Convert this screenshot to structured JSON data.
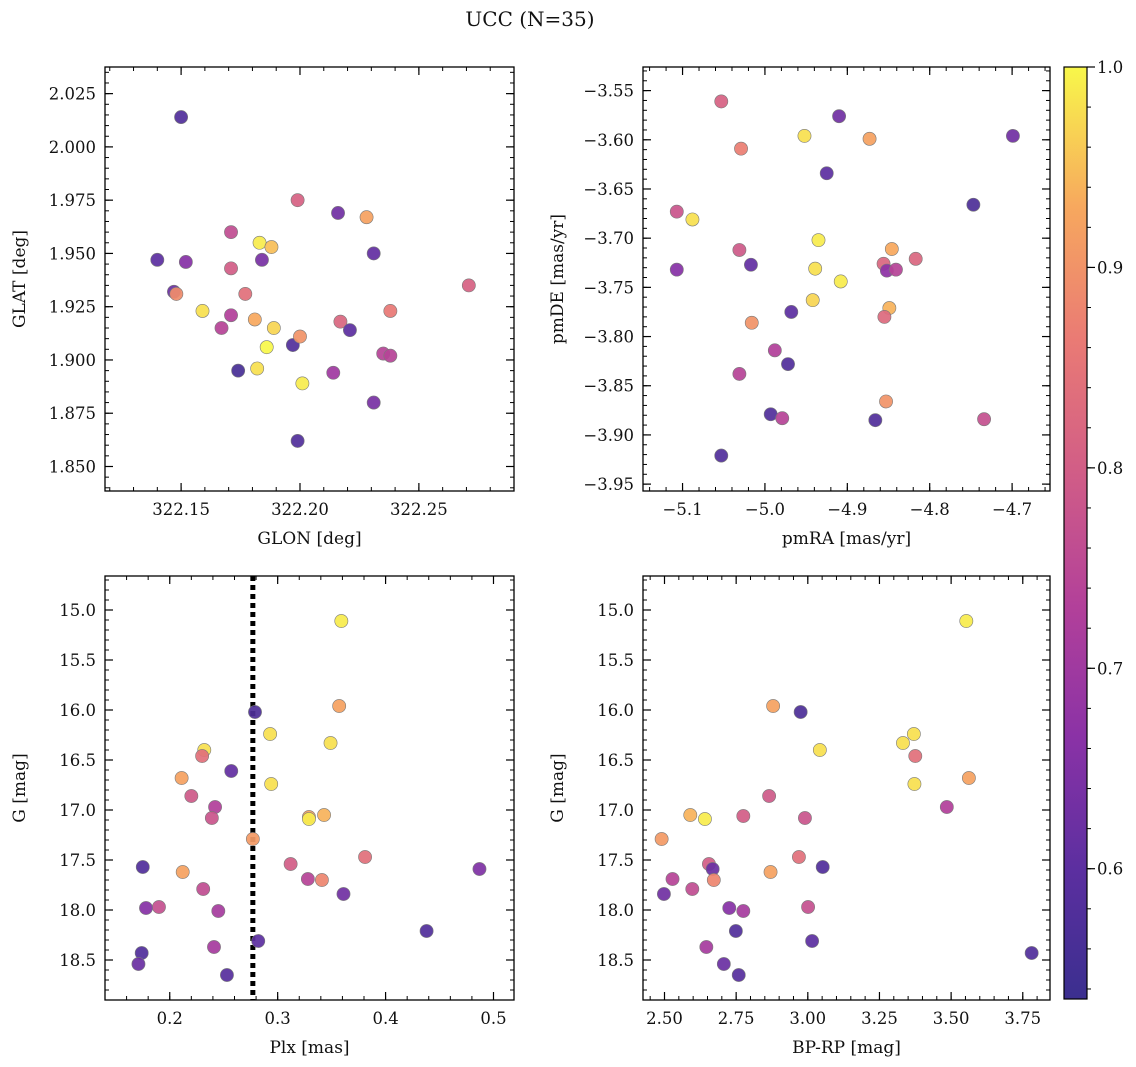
{
  "figure": {
    "title": "UCC (N=35)"
  },
  "colorbar": {
    "min": 0.535,
    "max": 1.0,
    "ticks": [
      0.6,
      0.7,
      0.8,
      0.9,
      1.0
    ],
    "tick_labels": [
      "0.6",
      "0.7",
      "0.8",
      "0.9",
      "1.0"
    ],
    "colormap": "plasma"
  },
  "chart_data": [
    {
      "id": "p1",
      "type": "scatter",
      "xlabel": "GLON [deg]",
      "ylabel": "GLAT [deg]",
      "xlim": [
        322.118,
        322.29
      ],
      "ylim": [
        1.8385,
        2.0375
      ],
      "xticks": [
        322.15,
        322.2,
        322.25
      ],
      "xtick_labels": [
        "322.15",
        "322.20",
        "322.25"
      ],
      "yticks": [
        1.85,
        1.875,
        1.9,
        1.925,
        1.95,
        1.975,
        2.0,
        2.025
      ],
      "ytick_labels": [
        "1.850",
        "1.875",
        "1.900",
        "1.925",
        "1.950",
        "1.975",
        "2.000",
        "2.025"
      ],
      "x_minor_step": 0.01,
      "y_minor_step": 0.005,
      "points": [
        {
          "x": 322.15,
          "y": 2.014,
          "c": 0.58
        },
        {
          "x": 322.14,
          "y": 1.947,
          "c": 0.6
        },
        {
          "x": 322.152,
          "y": 1.946,
          "c": 0.66
        },
        {
          "x": 322.147,
          "y": 1.932,
          "c": 0.62
        },
        {
          "x": 322.148,
          "y": 1.931,
          "c": 0.89
        },
        {
          "x": 322.159,
          "y": 1.923,
          "c": 0.98
        },
        {
          "x": 322.167,
          "y": 1.915,
          "c": 0.74
        },
        {
          "x": 322.171,
          "y": 1.96,
          "c": 0.76
        },
        {
          "x": 322.171,
          "y": 1.943,
          "c": 0.8
        },
        {
          "x": 322.171,
          "y": 1.921,
          "c": 0.73
        },
        {
          "x": 322.174,
          "y": 1.895,
          "c": 0.56
        },
        {
          "x": 322.177,
          "y": 1.931,
          "c": 0.84
        },
        {
          "x": 322.181,
          "y": 1.919,
          "c": 0.93
        },
        {
          "x": 322.182,
          "y": 1.896,
          "c": 0.98
        },
        {
          "x": 322.183,
          "y": 1.955,
          "c": 0.99
        },
        {
          "x": 322.184,
          "y": 1.947,
          "c": 0.64
        },
        {
          "x": 322.186,
          "y": 1.906,
          "c": 1.0
        },
        {
          "x": 322.188,
          "y": 1.953,
          "c": 0.95
        },
        {
          "x": 322.189,
          "y": 1.915,
          "c": 0.97
        },
        {
          "x": 322.197,
          "y": 1.907,
          "c": 0.58
        },
        {
          "x": 322.199,
          "y": 1.975,
          "c": 0.81
        },
        {
          "x": 322.199,
          "y": 1.862,
          "c": 0.58
        },
        {
          "x": 322.2,
          "y": 1.911,
          "c": 0.9
        },
        {
          "x": 322.201,
          "y": 1.889,
          "c": 0.99
        },
        {
          "x": 322.214,
          "y": 1.894,
          "c": 0.7
        },
        {
          "x": 322.216,
          "y": 1.969,
          "c": 0.63
        },
        {
          "x": 322.217,
          "y": 1.918,
          "c": 0.82
        },
        {
          "x": 322.221,
          "y": 1.914,
          "c": 0.6
        },
        {
          "x": 322.228,
          "y": 1.967,
          "c": 0.92
        },
        {
          "x": 322.231,
          "y": 1.95,
          "c": 0.61
        },
        {
          "x": 322.231,
          "y": 1.88,
          "c": 0.64
        },
        {
          "x": 322.235,
          "y": 1.903,
          "c": 0.74
        },
        {
          "x": 322.238,
          "y": 1.902,
          "c": 0.74
        },
        {
          "x": 322.238,
          "y": 1.923,
          "c": 0.86
        },
        {
          "x": 322.271,
          "y": 1.935,
          "c": 0.81
        }
      ]
    },
    {
      "id": "p2",
      "type": "scatter",
      "xlabel": "pmRA [mas/yr]",
      "ylabel": "pmDE [mas/yr]",
      "xlim": [
        -5.148,
        -4.654
      ],
      "ylim": [
        -3.957,
        -3.526
      ],
      "xticks": [
        -5.1,
        -5.0,
        -4.9,
        -4.8,
        -4.7
      ],
      "xtick_labels": [
        "−5.1",
        "−5.0",
        "−4.9",
        "−4.8",
        "−4.7"
      ],
      "yticks": [
        -3.95,
        -3.9,
        -3.85,
        -3.8,
        -3.75,
        -3.7,
        -3.65,
        -3.6,
        -3.55
      ],
      "ytick_labels": [
        "−3.95",
        "−3.90",
        "−3.85",
        "−3.80",
        "−3.75",
        "−3.70",
        "−3.65",
        "−3.60",
        "−3.55"
      ],
      "x_minor_step": 0.02,
      "y_minor_step": 0.01,
      "points": [
        {
          "x": -5.053,
          "y": -3.561,
          "c": 0.81
        },
        {
          "x": -5.029,
          "y": -3.609,
          "c": 0.87
        },
        {
          "x": -4.952,
          "y": -3.596,
          "c": 0.98
        },
        {
          "x": -4.91,
          "y": -3.576,
          "c": 0.63
        },
        {
          "x": -4.873,
          "y": -3.599,
          "c": 0.92
        },
        {
          "x": -4.699,
          "y": -3.596,
          "c": 0.63
        },
        {
          "x": -4.925,
          "y": -3.634,
          "c": 0.6
        },
        {
          "x": -4.747,
          "y": -3.666,
          "c": 0.57
        },
        {
          "x": -5.107,
          "y": -3.673,
          "c": 0.78
        },
        {
          "x": -5.088,
          "y": -3.681,
          "c": 0.98
        },
        {
          "x": -5.031,
          "y": -3.712,
          "c": 0.79
        },
        {
          "x": -4.935,
          "y": -3.702,
          "c": 0.99
        },
        {
          "x": -4.846,
          "y": -3.711,
          "c": 0.93
        },
        {
          "x": -5.107,
          "y": -3.732,
          "c": 0.66
        },
        {
          "x": -5.017,
          "y": -3.727,
          "c": 0.61
        },
        {
          "x": -4.939,
          "y": -3.731,
          "c": 0.98
        },
        {
          "x": -4.817,
          "y": -3.721,
          "c": 0.82
        },
        {
          "x": -4.856,
          "y": -3.726,
          "c": 0.82
        },
        {
          "x": -4.852,
          "y": -3.733,
          "c": 0.67
        },
        {
          "x": -4.841,
          "y": -3.732,
          "c": 0.74
        },
        {
          "x": -4.908,
          "y": -3.744,
          "c": 0.99
        },
        {
          "x": -4.942,
          "y": -3.763,
          "c": 0.97
        },
        {
          "x": -4.849,
          "y": -3.771,
          "c": 0.94
        },
        {
          "x": -4.968,
          "y": -3.775,
          "c": 0.6
        },
        {
          "x": -4.855,
          "y": -3.78,
          "c": 0.83
        },
        {
          "x": -5.016,
          "y": -3.786,
          "c": 0.9
        },
        {
          "x": -4.988,
          "y": -3.814,
          "c": 0.73
        },
        {
          "x": -4.972,
          "y": -3.828,
          "c": 0.58
        },
        {
          "x": -5.031,
          "y": -3.838,
          "c": 0.74
        },
        {
          "x": -4.853,
          "y": -3.866,
          "c": 0.9
        },
        {
          "x": -4.993,
          "y": -3.879,
          "c": 0.58
        },
        {
          "x": -4.979,
          "y": -3.883,
          "c": 0.74
        },
        {
          "x": -4.866,
          "y": -3.885,
          "c": 0.58
        },
        {
          "x": -4.734,
          "y": -3.884,
          "c": 0.77
        },
        {
          "x": -5.053,
          "y": -3.921,
          "c": 0.58
        }
      ]
    },
    {
      "id": "p3",
      "type": "scatter",
      "xlabel": "Plx [mas]",
      "ylabel": "G [mag]",
      "xlim": [
        0.14,
        0.519
      ],
      "ylim": [
        18.9,
        14.66
      ],
      "xticks": [
        0.2,
        0.3,
        0.4,
        0.5
      ],
      "xtick_labels": [
        "0.2",
        "0.3",
        "0.4",
        "0.5"
      ],
      "yticks": [
        15.0,
        15.5,
        16.0,
        16.5,
        17.0,
        17.5,
        18.0,
        18.5
      ],
      "ytick_labels": [
        "15.0",
        "15.5",
        "16.0",
        "16.5",
        "17.0",
        "17.5",
        "18.0",
        "18.5"
      ],
      "x_minor_step": 0.02,
      "y_minor_step": 0.1,
      "vline": 0.277,
      "points": [
        {
          "x": 0.359,
          "y": 15.11,
          "c": 0.99
        },
        {
          "x": 0.357,
          "y": 15.96,
          "c": 0.92
        },
        {
          "x": 0.279,
          "y": 16.02,
          "c": 0.57
        },
        {
          "x": 0.293,
          "y": 16.24,
          "c": 0.98
        },
        {
          "x": 0.349,
          "y": 16.33,
          "c": 0.98
        },
        {
          "x": 0.232,
          "y": 16.4,
          "c": 0.98
        },
        {
          "x": 0.23,
          "y": 16.46,
          "c": 0.84
        },
        {
          "x": 0.257,
          "y": 16.61,
          "c": 0.61
        },
        {
          "x": 0.211,
          "y": 16.68,
          "c": 0.92
        },
        {
          "x": 0.294,
          "y": 16.74,
          "c": 0.98
        },
        {
          "x": 0.22,
          "y": 16.86,
          "c": 0.79
        },
        {
          "x": 0.242,
          "y": 16.97,
          "c": 0.73
        },
        {
          "x": 0.343,
          "y": 17.05,
          "c": 0.94
        },
        {
          "x": 0.239,
          "y": 17.08,
          "c": 0.78
        },
        {
          "x": 0.329,
          "y": 17.07,
          "c": 0.92
        },
        {
          "x": 0.329,
          "y": 17.09,
          "c": 0.99
        },
        {
          "x": 0.277,
          "y": 17.29,
          "c": 0.91
        },
        {
          "x": 0.381,
          "y": 17.47,
          "c": 0.84
        },
        {
          "x": 0.312,
          "y": 17.54,
          "c": 0.8
        },
        {
          "x": 0.175,
          "y": 17.57,
          "c": 0.58
        },
        {
          "x": 0.487,
          "y": 17.59,
          "c": 0.65
        },
        {
          "x": 0.212,
          "y": 17.62,
          "c": 0.92
        },
        {
          "x": 0.328,
          "y": 17.69,
          "c": 0.74
        },
        {
          "x": 0.341,
          "y": 17.7,
          "c": 0.88
        },
        {
          "x": 0.231,
          "y": 17.79,
          "c": 0.76
        },
        {
          "x": 0.361,
          "y": 17.84,
          "c": 0.63
        },
        {
          "x": 0.19,
          "y": 17.97,
          "c": 0.77
        },
        {
          "x": 0.178,
          "y": 17.98,
          "c": 0.66
        },
        {
          "x": 0.245,
          "y": 18.01,
          "c": 0.71
        },
        {
          "x": 0.438,
          "y": 18.21,
          "c": 0.58
        },
        {
          "x": 0.282,
          "y": 18.31,
          "c": 0.6
        },
        {
          "x": 0.241,
          "y": 18.37,
          "c": 0.71
        },
        {
          "x": 0.174,
          "y": 18.43,
          "c": 0.58
        },
        {
          "x": 0.171,
          "y": 18.54,
          "c": 0.62
        },
        {
          "x": 0.253,
          "y": 18.65,
          "c": 0.59
        }
      ]
    },
    {
      "id": "p4",
      "type": "scatter",
      "xlabel": "BP-RP [mag]",
      "ylabel": "G [mag]",
      "xlim": [
        2.425,
        3.845
      ],
      "ylim": [
        18.9,
        14.66
      ],
      "xticks": [
        2.5,
        2.75,
        3.0,
        3.25,
        3.5,
        3.75
      ],
      "xtick_labels": [
        "2.50",
        "2.75",
        "3.00",
        "3.25",
        "3.50",
        "3.75"
      ],
      "yticks": [
        15.0,
        15.5,
        16.0,
        16.5,
        17.0,
        17.5,
        18.0,
        18.5
      ],
      "ytick_labels": [
        "15.0",
        "15.5",
        "16.0",
        "16.5",
        "17.0",
        "17.5",
        "18.0",
        "18.5"
      ],
      "x_minor_step": 0.05,
      "y_minor_step": 0.1,
      "points": [
        {
          "x": 3.553,
          "y": 15.11,
          "c": 0.99
        },
        {
          "x": 2.879,
          "y": 15.96,
          "c": 0.92
        },
        {
          "x": 2.975,
          "y": 16.02,
          "c": 0.57
        },
        {
          "x": 3.37,
          "y": 16.24,
          "c": 0.98
        },
        {
          "x": 3.332,
          "y": 16.33,
          "c": 0.98
        },
        {
          "x": 3.042,
          "y": 16.4,
          "c": 0.98
        },
        {
          "x": 3.375,
          "y": 16.46,
          "c": 0.84
        },
        {
          "x": 3.562,
          "y": 16.68,
          "c": 0.92
        },
        {
          "x": 3.372,
          "y": 16.74,
          "c": 0.98
        },
        {
          "x": 2.865,
          "y": 16.86,
          "c": 0.79
        },
        {
          "x": 3.485,
          "y": 16.97,
          "c": 0.73
        },
        {
          "x": 2.59,
          "y": 17.05,
          "c": 0.94
        },
        {
          "x": 2.775,
          "y": 17.06,
          "c": 0.8
        },
        {
          "x": 2.99,
          "y": 17.08,
          "c": 0.78
        },
        {
          "x": 2.641,
          "y": 17.09,
          "c": 0.99
        },
        {
          "x": 2.49,
          "y": 17.29,
          "c": 0.91
        },
        {
          "x": 2.969,
          "y": 17.47,
          "c": 0.84
        },
        {
          "x": 2.655,
          "y": 17.54,
          "c": 0.8
        },
        {
          "x": 3.052,
          "y": 17.57,
          "c": 0.58
        },
        {
          "x": 2.668,
          "y": 17.59,
          "c": 0.62
        },
        {
          "x": 2.87,
          "y": 17.62,
          "c": 0.92
        },
        {
          "x": 2.528,
          "y": 17.69,
          "c": 0.74
        },
        {
          "x": 2.672,
          "y": 17.7,
          "c": 0.88
        },
        {
          "x": 2.597,
          "y": 17.79,
          "c": 0.76
        },
        {
          "x": 2.498,
          "y": 17.84,
          "c": 0.63
        },
        {
          "x": 3.001,
          "y": 17.97,
          "c": 0.77
        },
        {
          "x": 2.726,
          "y": 17.98,
          "c": 0.66
        },
        {
          "x": 2.775,
          "y": 18.01,
          "c": 0.71
        },
        {
          "x": 2.749,
          "y": 18.21,
          "c": 0.58
        },
        {
          "x": 3.015,
          "y": 18.31,
          "c": 0.6
        },
        {
          "x": 2.646,
          "y": 18.37,
          "c": 0.71
        },
        {
          "x": 3.781,
          "y": 18.43,
          "c": 0.58
        },
        {
          "x": 2.707,
          "y": 18.54,
          "c": 0.62
        },
        {
          "x": 2.759,
          "y": 18.65,
          "c": 0.59
        }
      ]
    }
  ]
}
